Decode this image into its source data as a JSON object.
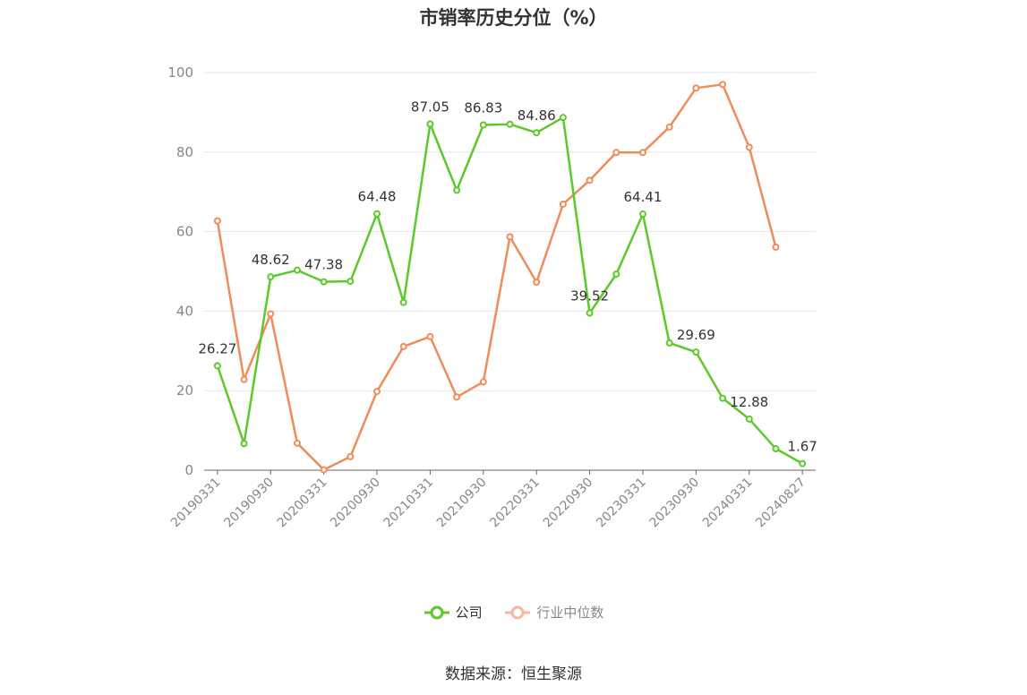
{
  "title": "市销率历史分位（%）",
  "source": "数据来源：恒生聚源",
  "legend": {
    "company": "公司",
    "industry": "行业中位数"
  },
  "colors": {
    "company": "#5cc92a",
    "industry": "#f08c5a",
    "industry_legend": "#f6b8a0",
    "grid": "#e3e6ec",
    "axis": "#666666",
    "tick_label": "#888888",
    "data_label": "#333333"
  },
  "chart_data": {
    "type": "line",
    "x": [
      "20190331",
      "20190630",
      "20190930",
      "20191231",
      "20200331",
      "20200630",
      "20200930",
      "20201231",
      "20210331",
      "20210630",
      "20210930",
      "20211231",
      "20220331",
      "20220630",
      "20220930",
      "20221231",
      "20230331",
      "20230630",
      "20230930",
      "20231231",
      "20240331",
      "20240630",
      "20240827"
    ],
    "x_tick_labels": [
      "20190331",
      "20190930",
      "20200331",
      "20200930",
      "20210331",
      "20210930",
      "20220331",
      "20220930",
      "20230331",
      "20230930",
      "20240331",
      "20240827"
    ],
    "x_tick_indices": [
      0,
      2,
      4,
      6,
      8,
      10,
      12,
      14,
      16,
      18,
      20,
      22
    ],
    "ylim": [
      0,
      100
    ],
    "y_ticks": [
      0,
      20,
      40,
      60,
      80,
      100
    ],
    "grid": true,
    "legend_position": "bottom-center",
    "series": [
      {
        "name": "公司",
        "values": [
          26.27,
          6.7,
          48.62,
          50.3,
          47.38,
          47.5,
          64.48,
          42.2,
          87.05,
          70.4,
          86.83,
          87.0,
          84.86,
          88.7,
          39.52,
          49.3,
          64.41,
          32.0,
          29.69,
          18.1,
          12.88,
          5.4,
          1.67
        ],
        "labels": {
          "0": "26.27",
          "2": "48.62",
          "4": "47.38",
          "6": "64.48",
          "8": "87.05",
          "10": "86.83",
          "12": "84.86",
          "14": "39.52",
          "16": "64.41",
          "18": "29.69",
          "20": "12.88",
          "22": "1.67"
        }
      },
      {
        "name": "行业中位数",
        "values": [
          62.7,
          22.8,
          39.3,
          6.8,
          0.1,
          3.4,
          19.8,
          31.1,
          33.6,
          18.4,
          22.2,
          58.7,
          47.3,
          66.9,
          72.9,
          79.9,
          79.9,
          86.3,
          96.1,
          97.0,
          81.2,
          56.1,
          null
        ]
      }
    ]
  }
}
